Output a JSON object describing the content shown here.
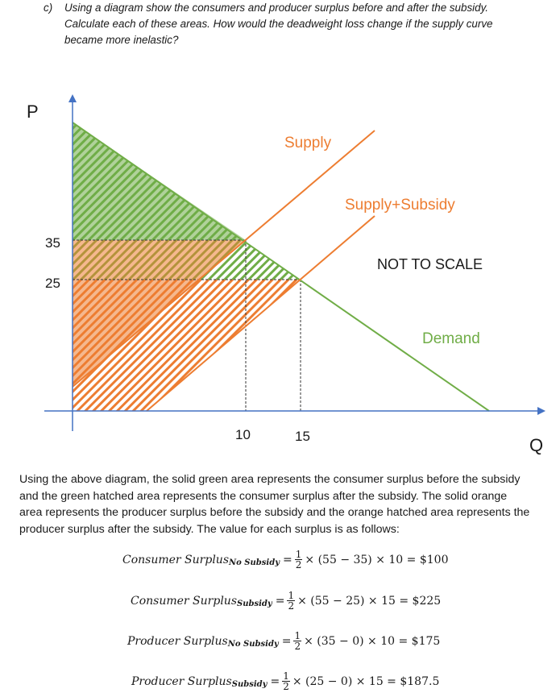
{
  "question": {
    "label": "c)",
    "lines": [
      "Using a diagram show the consumers and producer surplus before and after the subsidy.",
      "Calculate each of these areas. How would the deadweight loss change if the supply curve",
      "became more inelastic?"
    ]
  },
  "chart_data": {
    "type": "line",
    "title": "",
    "xlabel": "Q",
    "ylabel": "P",
    "x_ticks": [
      10,
      15
    ],
    "y_ticks": [
      25,
      35
    ],
    "note": "NOT TO SCALE",
    "series": [
      {
        "name": "Demand",
        "color": "#70ad47",
        "points": [
          [
            0,
            55
          ],
          [
            10,
            35
          ],
          [
            15,
            25
          ]
        ]
      },
      {
        "name": "Supply",
        "color": "#ed7d31",
        "points": [
          [
            0,
            0
          ],
          [
            10,
            35
          ]
        ]
      },
      {
        "name": "Supply+Subsidy",
        "color": "#ed7d31",
        "points": [
          [
            0,
            -10
          ],
          [
            15,
            25
          ]
        ]
      }
    ],
    "areas": [
      {
        "name": "consumer surplus before subsidy",
        "style": "solid",
        "color": "#70ad47"
      },
      {
        "name": "consumer surplus after subsidy",
        "style": "hatched",
        "color": "#70ad47"
      },
      {
        "name": "producer surplus before subsidy",
        "style": "solid",
        "color": "#ed7d31"
      },
      {
        "name": "producer surplus after subsidy",
        "style": "hatched",
        "color": "#ed7d31"
      }
    ]
  },
  "paragraph": {
    "lines": [
      "Using the above diagram, the solid green area represents the consumer surplus before the subsidy",
      "and the green hatched area represents the consumer surplus after the subsidy. The solid orange",
      "area represents the producer surplus before the subsidy and the orange hatched area represents the",
      "producer surplus after the subsidy. The value for each surplus is as follows:"
    ]
  },
  "equations": [
    {
      "name": "Consumer Surplus",
      "sub": "No Subsidy",
      "num": "1",
      "den": "2",
      "expr": "× (55 − 35) × 10 = $100"
    },
    {
      "name": "Consumer Surplus",
      "sub": "Subsidy",
      "num": "1",
      "den": "2",
      "expr": "× (55 − 25) × 15 = $225"
    },
    {
      "name": "Producer Surplus",
      "sub": "No Subsidy",
      "num": "1",
      "den": "2",
      "expr": "× (35 − 0) × 10 = $175"
    },
    {
      "name": "Producer Surplus",
      "sub": "Subsidy",
      "num": "1",
      "den": "2",
      "expr": "× (25 − 0) × 15 = $187.5"
    }
  ],
  "colors": {
    "green": "#70ad47",
    "orange": "#ed7d31",
    "axis": "#4472c4",
    "text": "#1a1a1a"
  }
}
